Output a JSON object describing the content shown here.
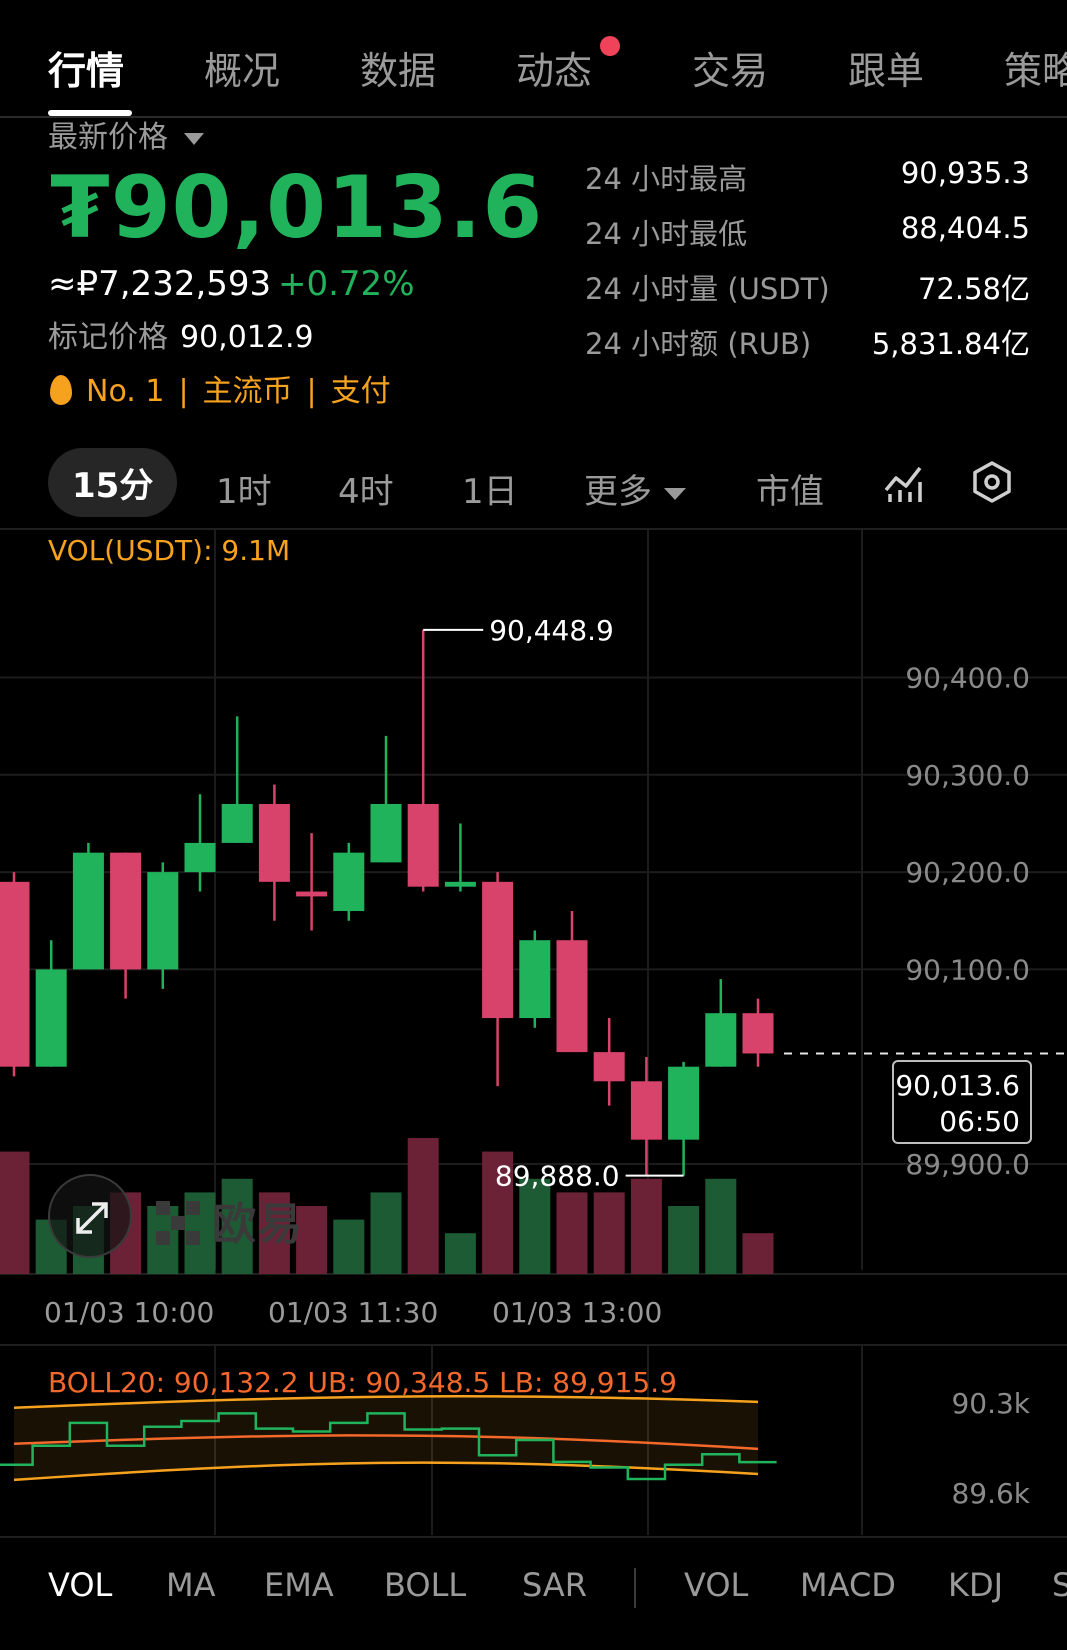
{
  "tabs": [
    {
      "label": "行情"
    },
    {
      "label": "概况"
    },
    {
      "label": "数据"
    },
    {
      "label": "动态"
    },
    {
      "label": "交易"
    },
    {
      "label": "跟单"
    },
    {
      "label": "策略"
    }
  ],
  "header": {
    "latest_label": "最新价格",
    "price": "₮90,013.6",
    "price_rub": "≈₽7,232,593",
    "change": "+0.72%",
    "mark_label": "标记价格",
    "mark_value": "90,012.9",
    "rank": "No. 1",
    "tag1": "主流币",
    "tag2": "支付"
  },
  "stats": [
    {
      "label": "24 小时最高",
      "value": "90,935.3"
    },
    {
      "label": "24 小时最低",
      "value": "88,404.5"
    },
    {
      "label": "24 小时量 (USDT)",
      "value": "72.58亿"
    },
    {
      "label": "24 小时额 (RUB)",
      "value": "5,831.84亿"
    }
  ],
  "intervals": {
    "active": "15分",
    "items": [
      "1时",
      "4时",
      "1日"
    ],
    "more": "更多",
    "market_cap": "市值"
  },
  "vol_label": "VOL(USDT): 9.1M",
  "boll_label": "BOLL20: 90,132.2 UB: 90,348.5 LB: 89,915.9",
  "watermark": "欧易",
  "chart_data": {
    "type": "candlestick",
    "y_ticks": [
      "90,400.0",
      "90,300.0",
      "90,200.0",
      "90,100.0",
      "89,900.0"
    ],
    "y_tick_values": [
      90400,
      90300,
      90200,
      90100,
      89900
    ],
    "x_ticks": [
      "01/03 10:00",
      "01/03 11:30",
      "01/03 13:00"
    ],
    "high_marker": "90,448.9",
    "low_marker": "89,888.0",
    "last_price": "90,013.6",
    "countdown": "06:50",
    "candles": [
      {
        "o": 90190,
        "h": 90200,
        "l": 89990,
        "c": 90000
      },
      {
        "o": 90000,
        "h": 90130,
        "l": 90000,
        "c": 90100
      },
      {
        "o": 90100,
        "h": 90230,
        "l": 90100,
        "c": 90220
      },
      {
        "o": 90220,
        "h": 90220,
        "l": 90070,
        "c": 90100
      },
      {
        "o": 90100,
        "h": 90210,
        "l": 90080,
        "c": 90200
      },
      {
        "o": 90200,
        "h": 90280,
        "l": 90180,
        "c": 90230
      },
      {
        "o": 90230,
        "h": 90360,
        "l": 90230,
        "c": 90270
      },
      {
        "o": 90270,
        "h": 90290,
        "l": 90150,
        "c": 90190
      },
      {
        "o": 90180,
        "h": 90240,
        "l": 90140,
        "c": 90175
      },
      {
        "o": 90160,
        "h": 90230,
        "l": 90150,
        "c": 90220
      },
      {
        "o": 90210,
        "h": 90340,
        "l": 90210,
        "c": 90270
      },
      {
        "o": 90270,
        "h": 90449,
        "l": 90180,
        "c": 90185
      },
      {
        "o": 90185,
        "h": 90250,
        "l": 90180,
        "c": 90190
      },
      {
        "o": 90190,
        "h": 90200,
        "l": 89980,
        "c": 90050
      },
      {
        "o": 90050,
        "h": 90140,
        "l": 90040,
        "c": 90130
      },
      {
        "o": 90130,
        "h": 90160,
        "l": 90020,
        "c": 90015
      },
      {
        "o": 90015,
        "h": 90050,
        "l": 89960,
        "c": 89985
      },
      {
        "o": 89985,
        "h": 90010,
        "l": 89888,
        "c": 89925
      },
      {
        "o": 89925,
        "h": 90005,
        "l": 89888,
        "c": 90000
      },
      {
        "o": 90000,
        "h": 90090,
        "l": 90000,
        "c": 90055
      },
      {
        "o": 90055,
        "h": 90070,
        "l": 90000,
        "c": 90013.6
      }
    ],
    "volume": [
      9,
      4,
      5,
      6,
      5,
      6,
      7,
      6,
      5,
      4,
      6,
      10,
      3,
      9,
      7,
      6,
      6,
      7,
      5,
      7,
      3
    ]
  },
  "boll_axis": [
    "90.3k",
    "89.6k"
  ],
  "indicators_main": [
    "VOL",
    "MA",
    "EMA",
    "BOLL",
    "SAR"
  ],
  "indicators_sub": [
    "VOL",
    "MACD",
    "KDJ",
    "S"
  ],
  "colors": {
    "up": "#21b35c",
    "down": "#d8436b",
    "accent": "#f6a21e"
  }
}
